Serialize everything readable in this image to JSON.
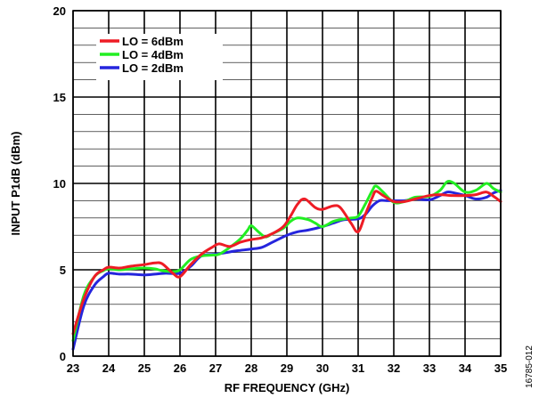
{
  "chart_data": {
    "type": "line",
    "title": "",
    "xlabel": "RF FREQUENCY (GHz)",
    "ylabel": "INPUT P1dB (dBm)",
    "xlim": [
      23,
      35
    ],
    "ylim": [
      0,
      20
    ],
    "xticks": [
      "23",
      "24",
      "25",
      "26",
      "27",
      "28",
      "29",
      "30",
      "31",
      "32",
      "33",
      "34",
      "35"
    ],
    "yticks": [
      "0",
      "5",
      "10",
      "15",
      "20"
    ],
    "grid": true,
    "legend_position": "top-left",
    "figure_id": "16785-012",
    "series": [
      {
        "name": "LO = 6dBm",
        "color": "#ee1c25",
        "x": [
          23.0,
          23.3,
          23.6,
          23.85,
          24.0,
          24.3,
          24.6,
          25.0,
          25.3,
          25.5,
          25.8,
          26.0,
          26.3,
          26.6,
          26.9,
          27.1,
          27.4,
          27.7,
          28.0,
          28.3,
          28.6,
          28.9,
          29.1,
          29.3,
          29.5,
          29.8,
          30.0,
          30.3,
          30.5,
          30.8,
          31.0,
          31.2,
          31.4,
          31.5,
          31.7,
          32.0,
          32.3,
          32.6,
          33.0,
          33.3,
          33.6,
          34.0,
          34.3,
          34.6,
          34.8,
          35.0
        ],
        "y": [
          1.3,
          3.3,
          4.6,
          5.0,
          5.15,
          5.1,
          5.2,
          5.3,
          5.4,
          5.35,
          4.8,
          4.6,
          5.3,
          5.9,
          6.3,
          6.5,
          6.35,
          6.6,
          6.75,
          6.85,
          7.1,
          7.5,
          8.1,
          8.8,
          9.1,
          8.6,
          8.5,
          8.7,
          8.6,
          7.7,
          7.2,
          8.2,
          9.2,
          9.55,
          9.3,
          8.95,
          8.95,
          9.1,
          9.3,
          9.35,
          9.3,
          9.3,
          9.35,
          9.5,
          9.25,
          8.95
        ]
      },
      {
        "name": "LO = 4dBm",
        "color": "#22ee22",
        "x": [
          23.0,
          23.3,
          23.6,
          23.85,
          24.0,
          24.3,
          24.6,
          25.0,
          25.3,
          25.5,
          25.8,
          26.0,
          26.3,
          26.6,
          26.9,
          27.1,
          27.4,
          27.7,
          27.9,
          28.0,
          28.2,
          28.4,
          28.6,
          28.9,
          29.1,
          29.3,
          29.6,
          29.8,
          30.0,
          30.3,
          30.5,
          30.8,
          31.0,
          31.2,
          31.4,
          31.5,
          31.7,
          32.0,
          32.3,
          32.6,
          33.0,
          33.3,
          33.5,
          33.7,
          34.0,
          34.3,
          34.6,
          34.8,
          35.0
        ],
        "y": [
          0.9,
          3.5,
          4.6,
          4.95,
          5.05,
          5.0,
          5.05,
          5.1,
          5.05,
          4.95,
          4.9,
          5.0,
          5.6,
          5.8,
          5.85,
          5.9,
          6.3,
          6.8,
          7.3,
          7.55,
          7.2,
          6.9,
          7.1,
          7.4,
          7.8,
          8.0,
          7.9,
          7.7,
          7.5,
          7.8,
          7.9,
          8.0,
          8.1,
          8.8,
          9.6,
          9.85,
          9.5,
          8.9,
          8.95,
          9.2,
          9.25,
          9.6,
          10.1,
          10.0,
          9.5,
          9.6,
          10.0,
          9.7,
          9.5
        ]
      },
      {
        "name": "LO = 2dBm",
        "color": "#2525dd",
        "x": [
          23.0,
          23.3,
          23.6,
          23.85,
          24.0,
          24.3,
          24.6,
          25.0,
          25.3,
          25.6,
          26.0,
          26.3,
          26.6,
          27.0,
          27.3,
          27.6,
          28.0,
          28.3,
          28.6,
          29.0,
          29.3,
          29.6,
          30.0,
          30.3,
          30.6,
          31.0,
          31.2,
          31.4,
          31.6,
          31.8,
          32.0,
          32.3,
          32.6,
          33.0,
          33.3,
          33.5,
          33.7,
          34.0,
          34.3,
          34.6,
          34.8,
          35.0
        ],
        "y": [
          0.4,
          2.9,
          4.1,
          4.6,
          4.8,
          4.75,
          4.75,
          4.7,
          4.75,
          4.8,
          4.8,
          5.2,
          5.8,
          5.9,
          6.0,
          6.1,
          6.2,
          6.3,
          6.6,
          7.0,
          7.2,
          7.3,
          7.5,
          7.7,
          7.9,
          7.95,
          8.2,
          8.7,
          9.0,
          9.0,
          9.0,
          9.0,
          9.1,
          9.05,
          9.3,
          9.5,
          9.45,
          9.3,
          9.1,
          9.2,
          9.45,
          9.6
        ]
      }
    ]
  }
}
